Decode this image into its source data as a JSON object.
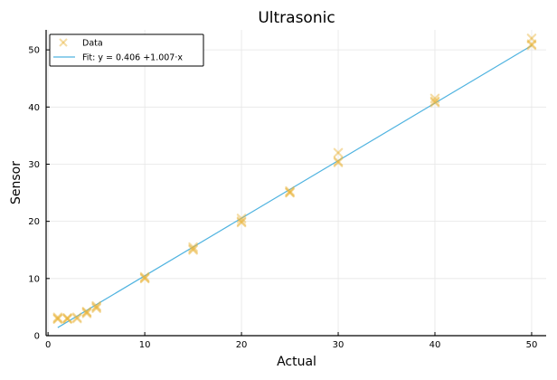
{
  "chart_data": {
    "type": "scatter",
    "title": "Ultrasonic",
    "xlabel": "Actual",
    "ylabel": "Sensor",
    "xlim": [
      -0.2,
      51.5
    ],
    "ylim": [
      0,
      53.5
    ],
    "xticks": [
      0,
      10,
      20,
      30,
      40,
      50
    ],
    "yticks": [
      0,
      10,
      20,
      30,
      40,
      50
    ],
    "grid": true,
    "legend_position": "top-left",
    "series": [
      {
        "name": "Data",
        "kind": "scatter",
        "marker": "x",
        "color": "#e8b33a",
        "points": [
          [
            1,
            3.0
          ],
          [
            1,
            3.2
          ],
          [
            1,
            2.9
          ],
          [
            2,
            3.0
          ],
          [
            2,
            3.1
          ],
          [
            2,
            2.9
          ],
          [
            3,
            3.2
          ],
          [
            3,
            3.0
          ],
          [
            4,
            4.1
          ],
          [
            4,
            3.9
          ],
          [
            4,
            4.2
          ],
          [
            5,
            5.0
          ],
          [
            5,
            5.2
          ],
          [
            5,
            4.8
          ],
          [
            10,
            10.0
          ],
          [
            10,
            10.3
          ],
          [
            10,
            10.1
          ],
          [
            15,
            15.0
          ],
          [
            15,
            15.5
          ],
          [
            15,
            15.2
          ],
          [
            20,
            20.0
          ],
          [
            20,
            20.5
          ],
          [
            20,
            19.8
          ],
          [
            25,
            25.1
          ],
          [
            25,
            25.0
          ],
          [
            25,
            25.3
          ],
          [
            30,
            30.5
          ],
          [
            30,
            32.0
          ],
          [
            30,
            30.3
          ],
          [
            40,
            41.0
          ],
          [
            40,
            41.5
          ],
          [
            40,
            40.8
          ],
          [
            50,
            51.0
          ],
          [
            50,
            52.0
          ],
          [
            50,
            50.8
          ]
        ]
      },
      {
        "name": "Fit: y = 0.406 +1.007·x",
        "kind": "line",
        "color": "#4fb3e0",
        "intercept": 0.406,
        "slope": 1.007,
        "x_range": [
          1,
          50
        ]
      }
    ]
  }
}
